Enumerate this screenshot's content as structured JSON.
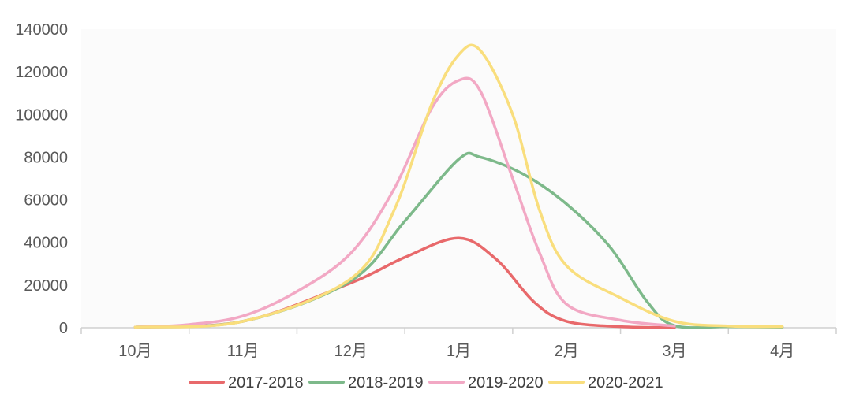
{
  "chart_data": {
    "type": "line",
    "title": "",
    "xlabel": "",
    "ylabel": "",
    "ylim": [
      0,
      140000
    ],
    "yticks": [
      0,
      20000,
      40000,
      60000,
      80000,
      100000,
      120000,
      140000
    ],
    "ytick_labels": [
      "0",
      "20000",
      "40000",
      "60000",
      "80000",
      "100000",
      "120000",
      "140000"
    ],
    "categories": [
      "10月",
      "11月",
      "12月",
      "1月",
      "2月",
      "3月",
      "4月"
    ],
    "legend_position": "bottom",
    "grid": false,
    "series": [
      {
        "name": "2017-2018",
        "color": "#E8696B",
        "points": [
          [
            0,
            300
          ],
          [
            1,
            3000
          ],
          [
            2,
            21000
          ],
          [
            2.5,
            33000
          ],
          [
            3,
            42000
          ],
          [
            3.35,
            32000
          ],
          [
            3.7,
            12000
          ],
          [
            4,
            3000
          ],
          [
            4.5,
            500
          ],
          [
            5,
            100
          ]
        ]
      },
      {
        "name": "2018-2019",
        "color": "#7DB98A",
        "points": [
          [
            0,
            300
          ],
          [
            1,
            3000
          ],
          [
            2,
            22000
          ],
          [
            2.5,
            50000
          ],
          [
            3,
            79000
          ],
          [
            3.2,
            80000
          ],
          [
            3.6,
            72000
          ],
          [
            4,
            58000
          ],
          [
            4.4,
            38000
          ],
          [
            4.75,
            12000
          ],
          [
            5,
            1000
          ],
          [
            5.5,
            500
          ],
          [
            6,
            300
          ]
        ]
      },
      {
        "name": "2019-2020",
        "color": "#F2A8C4",
        "points": [
          [
            0,
            300
          ],
          [
            0.5,
            1500
          ],
          [
            1,
            5500
          ],
          [
            1.5,
            17000
          ],
          [
            2,
            35000
          ],
          [
            2.4,
            65000
          ],
          [
            2.75,
            103000
          ],
          [
            3,
            116000
          ],
          [
            3.2,
            111000
          ],
          [
            3.5,
            70000
          ],
          [
            3.75,
            35000
          ],
          [
            4,
            11000
          ],
          [
            4.5,
            3500
          ],
          [
            5,
            800
          ]
        ]
      },
      {
        "name": "2020-2021",
        "color": "#F9DE7D",
        "points": [
          [
            0,
            300
          ],
          [
            1,
            3000
          ],
          [
            2,
            23000
          ],
          [
            2.4,
            55000
          ],
          [
            2.75,
            105000
          ],
          [
            3,
            128000
          ],
          [
            3.2,
            130000
          ],
          [
            3.5,
            100000
          ],
          [
            3.75,
            55000
          ],
          [
            4,
            29000
          ],
          [
            4.5,
            14000
          ],
          [
            5,
            3000
          ],
          [
            5.5,
            800
          ],
          [
            6,
            500
          ]
        ]
      }
    ]
  }
}
